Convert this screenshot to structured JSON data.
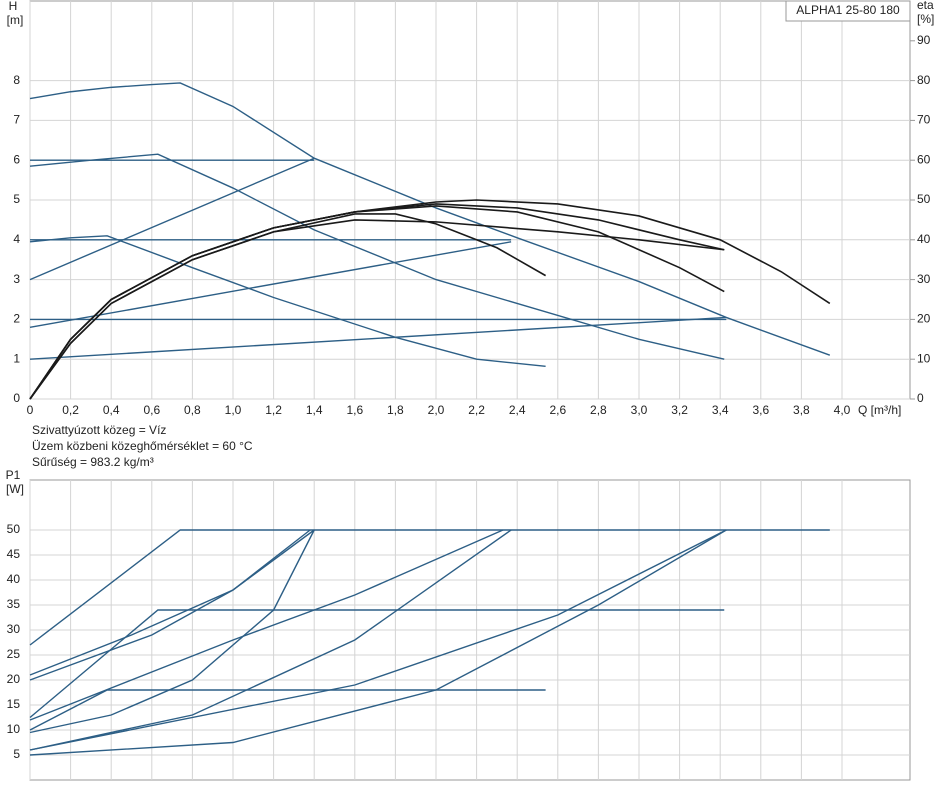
{
  "chart_data": [
    {
      "type": "line",
      "ylabel": "H",
      "yunit": "[m]",
      "y2label": "eta",
      "y2unit": "[%]",
      "xlabel": "Q [m³/h]",
      "legend": "ALPHA1 25-80 180",
      "annotations": [
        "Szivattyúzott közeg = Víz",
        "Üzem közbeni közeghőmérséklet = 60 °C",
        "Sűrűség = 983.2 kg/m³"
      ],
      "xlim": [
        0,
        4.335
      ],
      "ylim": [
        0,
        10
      ],
      "y2lim": [
        0,
        100
      ],
      "grid": true,
      "xticks": [
        0,
        {
          "value": 0.2,
          "label": "0,2"
        },
        {
          "value": 0.4,
          "label": "0,4"
        },
        {
          "value": 0.6,
          "label": "0,6"
        },
        {
          "value": 0.8,
          "label": "0,8"
        },
        {
          "value": 1.0,
          "label": "1,0"
        },
        {
          "value": 1.2,
          "label": "1,2"
        },
        {
          "value": 1.4,
          "label": "1,4"
        },
        {
          "value": 1.6,
          "label": "1,6"
        },
        {
          "value": 1.8,
          "label": "1,8"
        },
        {
          "value": 2.0,
          "label": "2,0"
        },
        {
          "value": 2.2,
          "label": "2,2"
        },
        {
          "value": 2.4,
          "label": "2,4"
        },
        {
          "value": 2.6,
          "label": "2,6"
        },
        {
          "value": 2.8,
          "label": "2,8"
        },
        {
          "value": 3.0,
          "label": "3,0"
        },
        {
          "value": 3.2,
          "label": "3,2"
        },
        {
          "value": 3.4,
          "label": "3,4"
        },
        {
          "value": 3.6,
          "label": "3,6"
        },
        {
          "value": 3.8,
          "label": "3,8"
        },
        {
          "value": 4.0,
          "label": "4,0"
        }
      ],
      "yticks": [
        0,
        1,
        2,
        3,
        4,
        5,
        6,
        7,
        8
      ],
      "y2ticks": [
        0,
        10,
        20,
        30,
        40,
        50,
        60,
        70,
        80,
        90
      ],
      "series": [
        {
          "color": "#2d5f86",
          "x": [
            0,
            0.2,
            0.4,
            0.6,
            0.74,
            1.0,
            1.4,
            2.0,
            2.4,
            3.0,
            3.43,
            3.94
          ],
          "values": [
            7.55,
            7.72,
            7.83,
            7.9,
            7.94,
            7.35,
            6.05,
            4.8,
            4.05,
            2.95,
            2.05,
            1.1
          ]
        },
        {
          "color": "#2d5f86",
          "x": [
            0,
            0.3,
            0.63,
            1.0,
            1.4,
            2.0,
            3.0,
            3.42
          ],
          "values": [
            5.85,
            6.0,
            6.15,
            5.3,
            4.25,
            3.0,
            1.5,
            1.0
          ]
        },
        {
          "color": "#2d5f86",
          "x": [
            0,
            0.2,
            0.38,
            0.8,
            1.2,
            1.8,
            2.2,
            2.54
          ],
          "values": [
            3.95,
            4.05,
            4.1,
            3.3,
            2.55,
            1.55,
            1.0,
            0.82
          ]
        },
        {
          "color": "#2d5f86",
          "x": [
            0,
            1.4
          ],
          "values": [
            6.0,
            6.0
          ]
        },
        {
          "color": "#2d5f86",
          "x": [
            0,
            2.37
          ],
          "values": [
            4.0,
            4.0
          ]
        },
        {
          "color": "#2d5f86",
          "x": [
            0,
            3.43
          ],
          "values": [
            2.0,
            2.0
          ]
        },
        {
          "color": "#2d5f86",
          "x": [
            0,
            1.4
          ],
          "values": [
            3.0,
            6.05
          ]
        },
        {
          "color": "#2d5f86",
          "x": [
            0,
            2.37
          ],
          "values": [
            1.8,
            3.95
          ]
        },
        {
          "color": "#2d5f86",
          "x": [
            0,
            3.43
          ],
          "values": [
            1.0,
            2.05
          ]
        },
        {
          "color": "#1a1a1a",
          "axis": "y2",
          "x": [
            0,
            0.2,
            0.4,
            0.8,
            1.2,
            1.6,
            2.0,
            2.2,
            2.6,
            3.0,
            3.4,
            3.7,
            3.94
          ],
          "values": [
            0,
            15,
            25,
            36,
            43,
            47,
            49.5,
            50,
            49,
            46,
            40,
            32,
            24
          ]
        },
        {
          "color": "#1a1a1a",
          "axis": "y2",
          "x": [
            0,
            0.2,
            0.4,
            0.8,
            1.2,
            1.6,
            1.8,
            2.0,
            2.3,
            2.54
          ],
          "values": [
            0,
            14,
            24,
            35,
            42,
            46.5,
            46.5,
            44,
            38,
            31
          ]
        },
        {
          "color": "#1a1a1a",
          "axis": "y2",
          "x": [
            0,
            0.2,
            0.4,
            0.8,
            1.2,
            1.6,
            2.0,
            2.4,
            2.8,
            3.2,
            3.42
          ],
          "values": [
            0,
            15,
            25,
            36,
            43,
            47,
            48.5,
            47,
            42,
            33,
            27
          ]
        },
        {
          "color": "#1a1a1a",
          "axis": "y2",
          "x": [
            0,
            0.2,
            0.4,
            0.8,
            1.2,
            1.6,
            2.0,
            2.6,
            3.0,
            3.42
          ],
          "values": [
            0,
            14,
            24,
            35,
            42,
            45,
            44.5,
            42,
            40,
            37.5
          ]
        },
        {
          "color": "#1a1a1a",
          "axis": "y2",
          "x": [
            0,
            0.2,
            0.4,
            0.8,
            1.2,
            1.6,
            2.0,
            2.4,
            2.8,
            3.2,
            3.42
          ],
          "values": [
            0,
            15,
            25,
            36,
            43,
            47,
            49,
            48,
            45,
            40,
            37.5
          ]
        }
      ]
    },
    {
      "type": "line",
      "ylabel": "P1",
      "yunit": "[W]",
      "xlim": [
        0,
        4.335
      ],
      "ylim": [
        0,
        60
      ],
      "grid": true,
      "xticks": [
        0,
        0.2,
        0.4,
        0.6,
        0.8,
        1.0,
        1.2,
        1.4,
        1.6,
        1.8,
        2.0,
        2.2,
        2.4,
        2.6,
        2.8,
        3.0,
        3.2,
        3.4,
        3.6,
        3.8,
        4.0
      ],
      "yticks": [
        5,
        10,
        15,
        20,
        25,
        30,
        35,
        40,
        45,
        50
      ],
      "series": [
        {
          "color": "#2d5f86",
          "x": [
            0,
            0.74,
            3.94
          ],
          "values": [
            27,
            50,
            50
          ]
        },
        {
          "color": "#2d5f86",
          "x": [
            0,
            0.5,
            1.0,
            1.4
          ],
          "values": [
            21,
            29,
            38,
            50
          ]
        },
        {
          "color": "#2d5f86",
          "x": [
            0,
            0.4,
            0.8,
            1.2,
            1.4
          ],
          "values": [
            9.5,
            13,
            20,
            34,
            50
          ]
        },
        {
          "color": "#2d5f86",
          "x": [
            0,
            0.6,
            1.0,
            1.38
          ],
          "values": [
            20,
            29,
            38,
            50
          ]
        },
        {
          "color": "#2d5f86",
          "x": [
            0,
            1.0,
            1.6,
            2.33
          ],
          "values": [
            12,
            28,
            37,
            50
          ]
        },
        {
          "color": "#2d5f86",
          "x": [
            0,
            0.8,
            1.6,
            2.37
          ],
          "values": [
            6,
            13,
            28,
            50
          ]
        },
        {
          "color": "#2d5f86",
          "x": [
            0,
            1.6,
            2.6,
            3.43
          ],
          "values": [
            6,
            19,
            33,
            50
          ]
        },
        {
          "color": "#2d5f86",
          "x": [
            0,
            1.0,
            2.0,
            2.8,
            3.43
          ],
          "values": [
            5,
            7.5,
            18,
            35,
            50
          ]
        },
        {
          "color": "#2d5f86",
          "x": [
            0,
            0.63,
            3.42
          ],
          "values": [
            12.5,
            34,
            34
          ]
        },
        {
          "color": "#2d5f86",
          "x": [
            0,
            0.38,
            2.54
          ],
          "values": [
            10,
            18,
            18
          ]
        }
      ]
    }
  ]
}
